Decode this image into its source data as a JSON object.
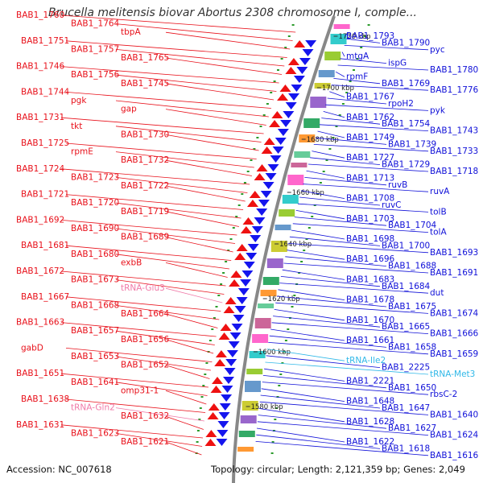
{
  "title": "Brucella melitensis biovar Abortus 2308 chromosome I, comple...",
  "footer": {
    "accession": "Accession: NC_007618",
    "topology": "Topology: circular; Length: 2,121,359 bp; Genes: 2,049"
  },
  "colors": {
    "left_label": "#e8101a",
    "right_label": "#1010d8",
    "trna_left": "#f07aa8",
    "trna_right": "#30b8e8",
    "forward_arrow": "#ee1111",
    "reverse_arrow": "#1515ee",
    "backbone": "#888888",
    "tick": "#2a9a2a"
  },
  "kbp_marks": [
    "1720 kbp",
    "1700 kbp",
    "1680 kbp",
    "1660 kbp",
    "1640 kbp",
    "1620 kbp",
    "1600 kbp",
    "1580 kbp"
  ],
  "left_labels": [
    "BAB1_1760",
    "BAB1_1764",
    "tbpA",
    "BAB1_1751",
    "BAB1_1757",
    "BAB1_1765",
    "BAB1_1746",
    "BAB1_1756",
    "BAB1_1745",
    "BAB1_1744",
    "pgk",
    "gap",
    "BAB1_1731",
    "tkt",
    "BAB1_1730",
    "BAB1_1725",
    "rpmE",
    "BAB1_1732",
    "BAB1_1724",
    "BAB1_1723",
    "BAB1_1722",
    "BAB1_1721",
    "BAB1_1720",
    "BAB1_1719",
    "BAB1_1692",
    "BAB1_1690",
    "BAB1_1689",
    "BAB1_1681",
    "BAB1_1680",
    "exbB",
    "BAB1_1672",
    "BAB1_1673",
    "tRNA-Glu3",
    "BAB1_1667",
    "BAB1_1668",
    "BAB1_1664",
    "BAB1_1663",
    "BAB1_1657",
    "BAB1_1656",
    "gabD",
    "BAB1_1653",
    "BAB1_1652",
    "BAB1_1651",
    "BAB1_1641",
    "omp31-1",
    "BAB1_1638",
    "tRNA-Gln2",
    "BAB1_1632",
    "BAB1_1631",
    "BAB1_1623",
    "BAB1_1621"
  ],
  "right_labels": [
    "BAB1_1793",
    "BAB1_1790",
    "pyc",
    "mtgA",
    "ispG",
    "BAB1_1780",
    "rpmF",
    "BAB1_1769",
    "BAB1_1776",
    "BAB1_1767",
    "rpoH2",
    "pyk",
    "BAB1_1762",
    "BAB1_1754",
    "BAB1_1743",
    "BAB1_1749",
    "BAB1_1739",
    "BAB1_1733",
    "BAB1_1727",
    "BAB1_1729",
    "BAB1_1718",
    "BAB1_1713",
    "ruvB",
    "ruvA",
    "BAB1_1708",
    "ruvC",
    "tolB",
    "BAB1_1703",
    "BAB1_1704",
    "tolA",
    "BAB1_1698",
    "BAB1_1700",
    "BAB1_1693",
    "BAB1_1696",
    "BAB1_1688",
    "BAB1_1691",
    "BAB1_1683",
    "BAB1_1684",
    "dut",
    "BAB1_1678",
    "BAB1_1675",
    "BAB1_1674",
    "BAB1_1670",
    "BAB1_1665",
    "BAB1_1666",
    "BAB1_1661",
    "BAB1_1658",
    "BAB1_1659",
    "tRNA-Ile2",
    "BAB1_2225",
    "tRNA-Met3",
    "BAB1_2221",
    "BAB1_1650",
    "rbsC-2",
    "BAB1_1648",
    "BAB1_1647",
    "BAB1_1640",
    "BAB1_1628",
    "BAB1_1627",
    "BAB1_1624",
    "BAB1_1622",
    "BAB1_1618",
    "BAB1_1616"
  ]
}
